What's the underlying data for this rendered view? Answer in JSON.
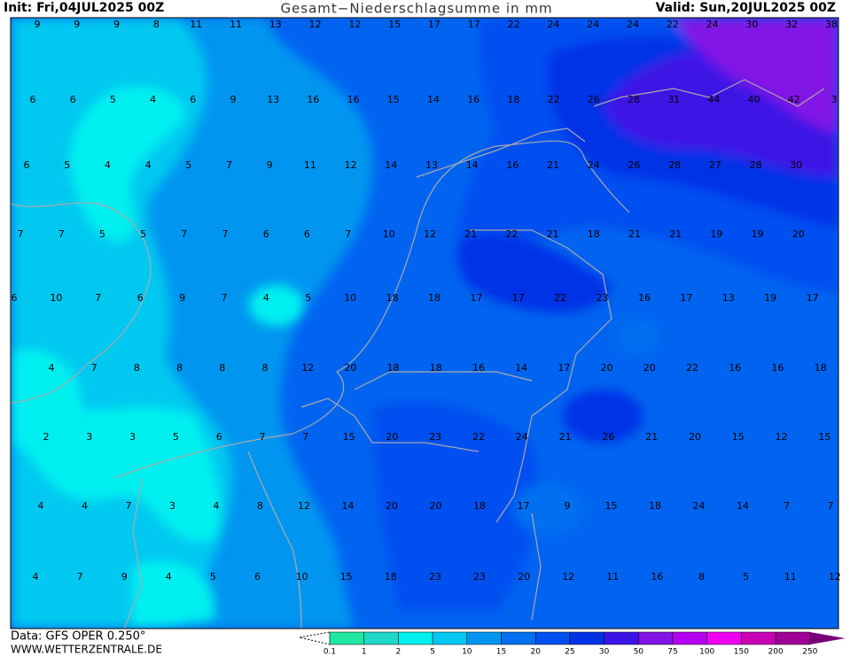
{
  "header": {
    "init": "Init: Fri,04JUL2025 00Z",
    "title": "Gesamt−Niederschlagsumme in mm",
    "valid": "Valid: Sun,20JUL2025 00Z"
  },
  "grid_values": [
    [
      "9",
      "9",
      "9",
      "8",
      "11",
      "11",
      "13",
      "12",
      "12",
      "15",
      "17",
      "17",
      "22",
      "24",
      "24",
      "24",
      "22",
      "24",
      "30",
      "32",
      "38"
    ],
    [
      "6",
      "6",
      "5",
      "4",
      "6",
      "9",
      "13",
      "16",
      "16",
      "15",
      "14",
      "16",
      "18",
      "22",
      "26",
      "28",
      "31",
      "44",
      "40",
      "42",
      "3"
    ],
    [
      "6",
      "5",
      "4",
      "4",
      "5",
      "7",
      "9",
      "11",
      "12",
      "14",
      "13",
      "14",
      "16",
      "21",
      "24",
      "26",
      "28",
      "27",
      "28",
      "30"
    ],
    [
      "7",
      "7",
      "5",
      "5",
      "7",
      "7",
      "6",
      "6",
      "7",
      "10",
      "12",
      "21",
      "22",
      "21",
      "18",
      "21",
      "21",
      "19",
      "19",
      "20"
    ],
    [
      "6",
      "10",
      "7",
      "6",
      "9",
      "7",
      "4",
      "5",
      "10",
      "18",
      "18",
      "17",
      "17",
      "22",
      "23",
      "16",
      "17",
      "13",
      "19",
      "17"
    ],
    [
      "4",
      "7",
      "8",
      "8",
      "8",
      "8",
      "12",
      "20",
      "18",
      "18",
      "16",
      "14",
      "17",
      "20",
      "20",
      "22",
      "16",
      "16",
      "18"
    ],
    [
      "2",
      "3",
      "3",
      "5",
      "6",
      "7",
      "7",
      "15",
      "20",
      "23",
      "22",
      "24",
      "21",
      "26",
      "21",
      "20",
      "15",
      "12",
      "15"
    ],
    [
      "4",
      "4",
      "7",
      "3",
      "4",
      "8",
      "12",
      "14",
      "20",
      "20",
      "18",
      "17",
      "9",
      "15",
      "18",
      "24",
      "14",
      "7",
      "7"
    ],
    [
      "4",
      "7",
      "9",
      "4",
      "5",
      "6",
      "10",
      "15",
      "18",
      "23",
      "23",
      "20",
      "12",
      "11",
      "16",
      "8",
      "5",
      "11",
      "12"
    ]
  ],
  "legend": {
    "labels": [
      "0.1",
      "1",
      "2",
      "5",
      "10",
      "15",
      "20",
      "25",
      "30",
      "50",
      "75",
      "100",
      "150",
      "200",
      "250"
    ],
    "colors": [
      "#20e8a0",
      "#20d8c8",
      "#00f0f0",
      "#00c8f0",
      "#0096f0",
      "#0070f0",
      "#0050f0",
      "#0032e6",
      "#3c14e6",
      "#8214e6",
      "#b400f0",
      "#f000f0",
      "#c800b4",
      "#a00096"
    ]
  },
  "footer": {
    "data": "Data: GFS OPER 0.250°",
    "site": "WWW.WETTERZENTRALE.DE"
  }
}
